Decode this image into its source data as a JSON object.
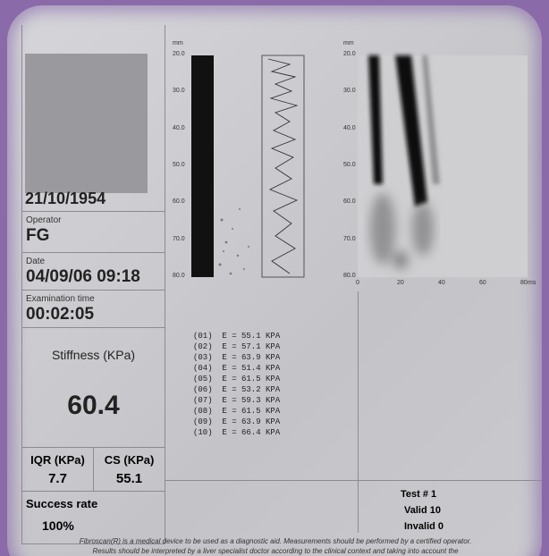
{
  "patient": {
    "birth_date": "21/10/1954"
  },
  "operator": {
    "label": "Operator",
    "value": "FG"
  },
  "date": {
    "label": "Date",
    "value": "04/09/06 09:18"
  },
  "exam_time": {
    "label": "Examination time",
    "value": "00:02:05"
  },
  "stiffness": {
    "label": "Stiffness (KPa)",
    "value": "60.4"
  },
  "iqr": {
    "label": "IQR (KPa)",
    "value": "7.7"
  },
  "cs": {
    "label": "CS (KPa)",
    "value": "55.1"
  },
  "success_rate": {
    "label": "Success rate",
    "value": "100%"
  },
  "mmode": {
    "unit": "mm",
    "depth_ticks": [
      "20.0",
      "30.0",
      "40.0",
      "50.0",
      "60.0",
      "70.0",
      "80.0"
    ]
  },
  "elastogram": {
    "unit": "mm",
    "depth_ticks": [
      "20.0",
      "30.0",
      "40.0",
      "50.0",
      "60.0",
      "70.0",
      "80.0"
    ],
    "time_ticks": [
      "0",
      "20",
      "40",
      "60",
      "80",
      "ms"
    ]
  },
  "measurements": [
    "(01)  E = 55.1 KPA",
    "(02)  E = 57.1 KPA",
    "(03)  E = 63.9 KPA",
    "(04)  E = 51.4 KPA",
    "(05)  E = 61.5 KPA",
    "(06)  E = 53.2 KPA",
    "(07)  E = 59.3 KPA",
    "(08)  E = 61.5 KPA",
    "(09)  E = 63.9 KPA",
    "(10)  E = 66.4 KPA"
  ],
  "test": {
    "number": "Test # 1",
    "valid": "Valid 10",
    "invalid": "Invalid 0"
  },
  "footer": [
    "Fibroscan(R) is a medical device to be used as a diagnostic aid. Measurements should be performed by a certified operator.",
    "Results should be interpreted by a liver specialist doctor according to the clinical context and taking into account the"
  ]
}
